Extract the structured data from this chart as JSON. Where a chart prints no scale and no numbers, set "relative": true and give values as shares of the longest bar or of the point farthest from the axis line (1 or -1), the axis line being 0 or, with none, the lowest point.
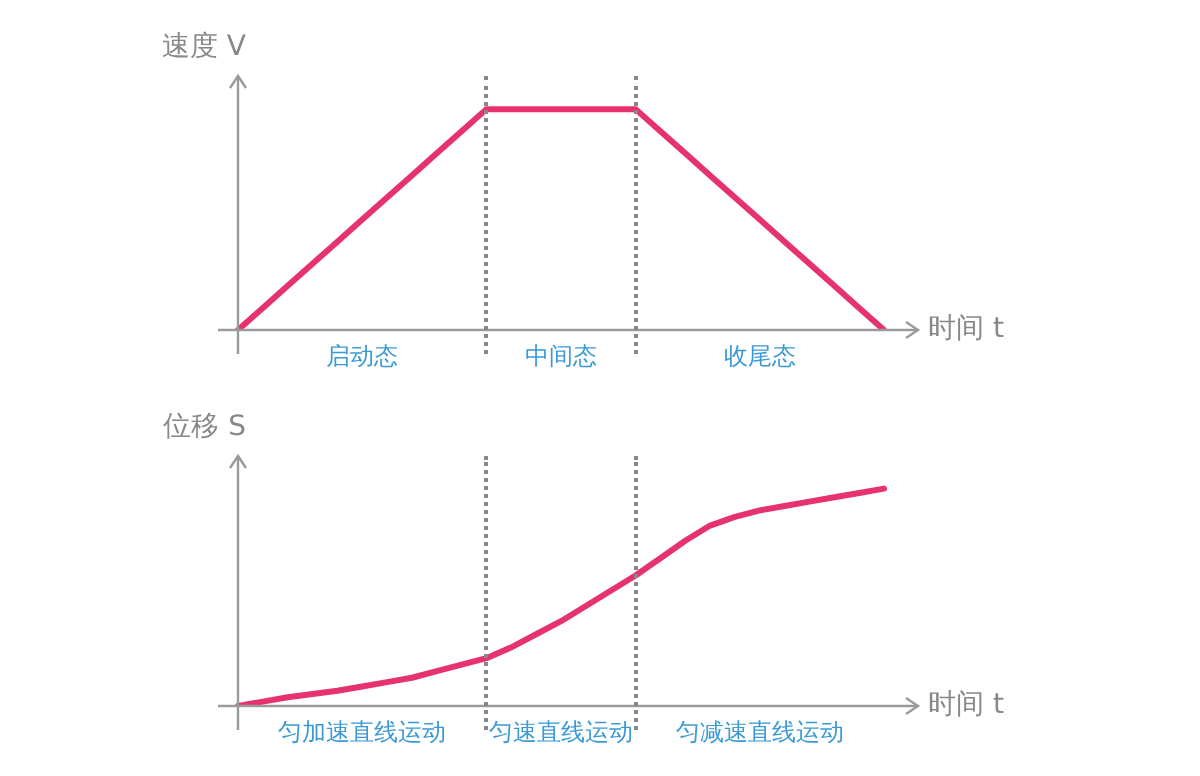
{
  "chart_data": [
    {
      "type": "line",
      "ylabel": "速度 V",
      "xlabel": "时间 t",
      "relative": true,
      "tick_labels": false,
      "marker": "none",
      "legend": false,
      "categories": [
        null,
        null,
        null,
        null,
        null,
        null,
        null,
        null,
        null,
        null,
        null,
        null,
        null,
        null,
        null,
        null,
        null,
        null,
        null,
        null,
        null,
        null,
        null,
        null,
        null,
        null,
        null
      ],
      "series": [
        {
          "color": "#e6336e",
          "values": [
            0,
            0.1,
            0.2,
            0.3,
            0.4,
            0.5,
            0.6,
            0.7,
            0.8,
            0.9,
            1,
            1,
            1,
            1,
            1,
            1,
            1,
            0.9,
            0.8,
            0.7,
            0.6,
            0.5,
            0.4,
            0.3,
            0.2,
            0.1,
            0
          ]
        }
      ],
      "annotations": [
        "启动态",
        "中间态",
        "收尾态"
      ]
    },
    {
      "type": "line",
      "ylabel": "位移 S",
      "xlabel": "时间 t",
      "relative": true,
      "tick_labels": false,
      "marker": "none",
      "legend": false,
      "categories": [
        null,
        null,
        null,
        null,
        null,
        null,
        null,
        null,
        null,
        null,
        null,
        null,
        null,
        null,
        null,
        null,
        null,
        null,
        null,
        null,
        null,
        null,
        null,
        null,
        null,
        null,
        null
      ],
      "series": [
        {
          "color": "#e6336e",
          "values": [
            0,
            0.02,
            0.04,
            0.055,
            0.07,
            0.09,
            0.11,
            0.13,
            0.16,
            0.19,
            0.22,
            0.27,
            0.33,
            0.39,
            0.46,
            0.53,
            0.6,
            0.68,
            0.76,
            0.83,
            0.87,
            0.9,
            0.92,
            0.94,
            0.96,
            0.98,
            1
          ]
        }
      ],
      "annotations": [
        "匀加速直线运动",
        "匀速直线运动",
        "匀减速直线运动"
      ]
    }
  ]
}
